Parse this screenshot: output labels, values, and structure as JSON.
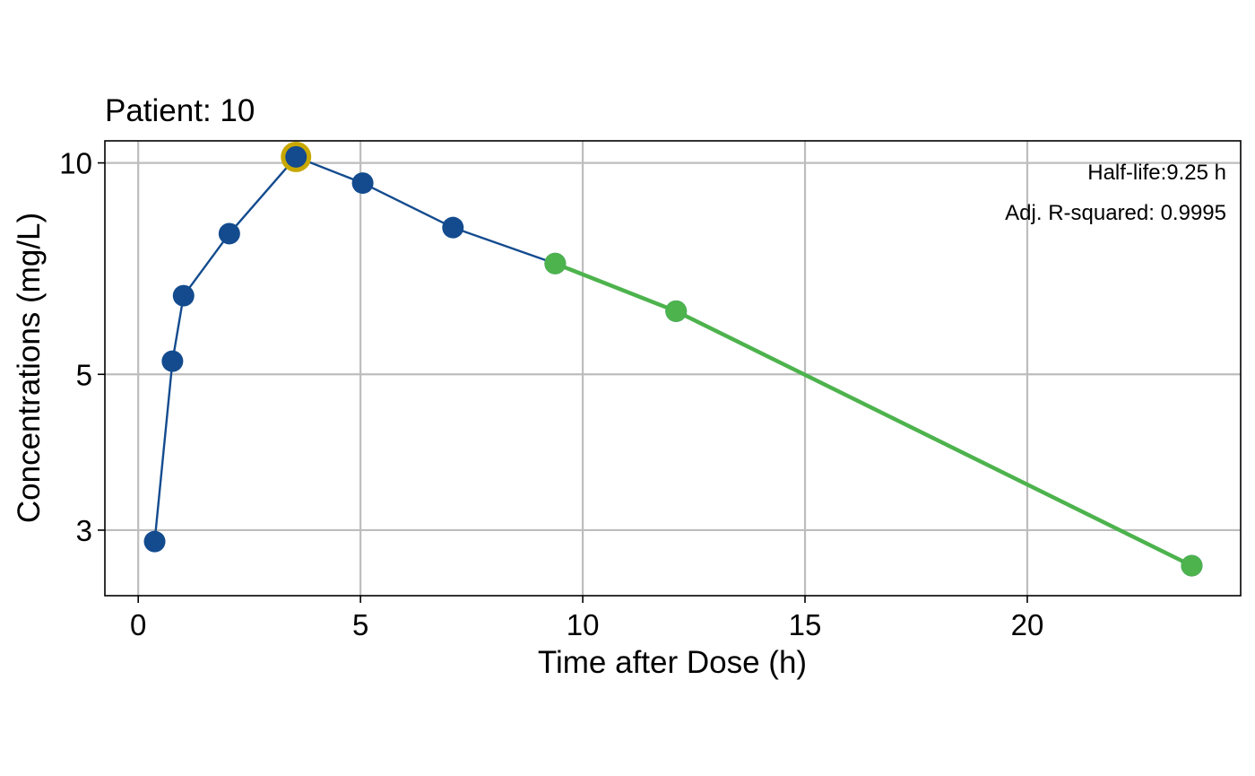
{
  "chart_data": {
    "type": "line",
    "title": "Patient: 10",
    "xlabel": "Time after Dose (h)",
    "ylabel": "Concentrations (mg/L)",
    "xlim": [
      -0.75,
      24.8
    ],
    "ylim": [
      2.42,
      10.75
    ],
    "y_scale": "log",
    "x_ticks": [
      0,
      5,
      10,
      15,
      20
    ],
    "x_tick_labels": [
      "0",
      "5",
      "10",
      "15",
      "20"
    ],
    "y_ticks": [
      3,
      5,
      10
    ],
    "y_tick_labels": [
      "3",
      "5",
      "10"
    ],
    "grid": true,
    "series": [
      {
        "role": "observed",
        "color": "#134b8e",
        "x": [
          0.37,
          0.77,
          1.02,
          2.05,
          3.55,
          5.05,
          7.08,
          9.38,
          12.1,
          23.7
        ],
        "y": [
          2.89,
          5.22,
          6.47,
          7.93,
          10.2,
          9.36,
          8.09,
          7.19,
          6.15,
          2.67
        ]
      },
      {
        "role": "terminal-fit",
        "color": "#4db34d",
        "x": [
          9.38,
          12.1,
          23.7
        ],
        "y": [
          7.19,
          6.15,
          2.67
        ]
      }
    ],
    "highlight": {
      "x": 3.55,
      "y": 10.2,
      "color": "#c8a800"
    },
    "annotations": [
      "Half-life:9.25 h",
      "Adj. R-squared: 0.9995"
    ],
    "colors": {
      "observed": "#134b8e",
      "fit": "#4db34d",
      "cmax_ring": "#c8a800",
      "grid": "#bdbdbd"
    }
  }
}
